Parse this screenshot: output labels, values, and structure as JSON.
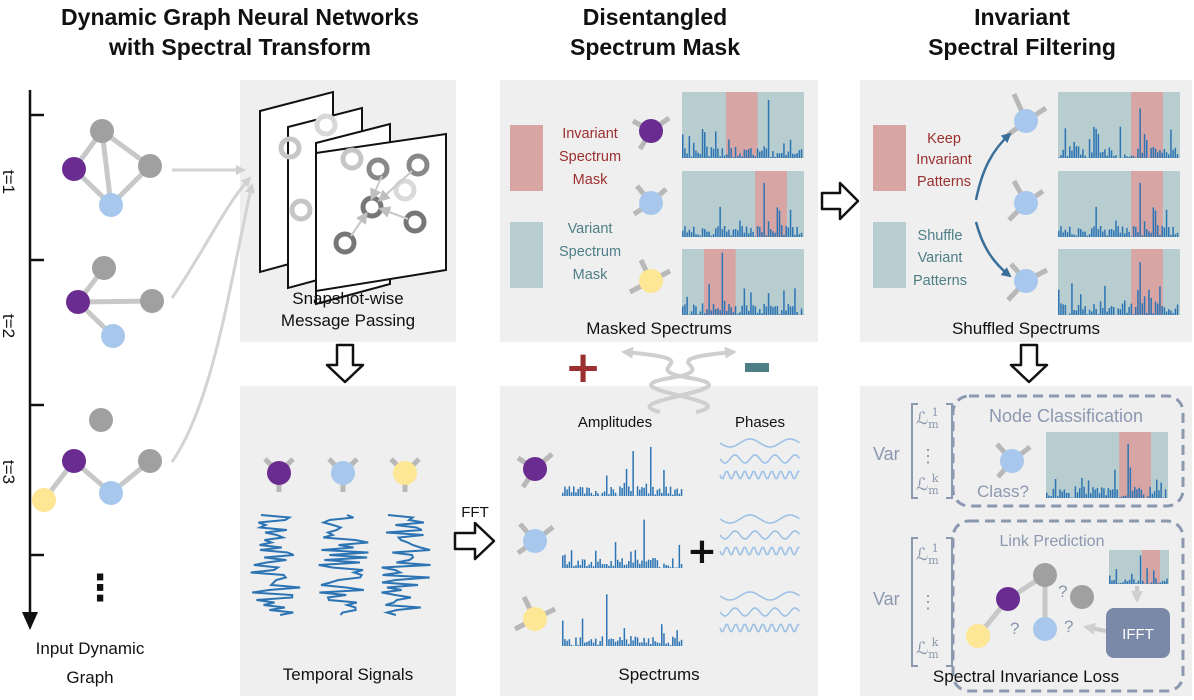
{
  "titles": {
    "left_line1": "Dynamic Graph Neural Networks",
    "left_line2": "with Spectral Transform",
    "mid_line1": "Disentangled",
    "mid_line2": "Spectrum Mask",
    "right_line1": "Invariant",
    "right_line2": "Spectral Filtering"
  },
  "timeline": {
    "t1": "t=1",
    "t2": "t=2",
    "t3": "t=3",
    "ellipsis": "⋮",
    "caption_line1": "Input Dynamic",
    "caption_line2": "Graph"
  },
  "panels": {
    "snapshot_line1": "Snapshot-wise",
    "snapshot_line2": "Message Passing",
    "temporal": "Temporal Signals",
    "masked": "Masked Spectrums",
    "spectrums": "Spectrums",
    "amplitudes": "Amplitudes",
    "phases": "Phases",
    "shuffled": "Shuffled Spectrums",
    "loss": "Spectral Invariance Loss"
  },
  "masks": {
    "inv_line1": "Invariant",
    "inv_line2": "Spectrum",
    "inv_line3": "Mask",
    "var_line1": "Variant",
    "var_line2": "Spectrum",
    "var_line3": "Mask",
    "keep_line1": "Keep",
    "keep_line2": "Invariant",
    "keep_line3": "Patterns",
    "shuffle_line1": "Shuffle",
    "shuffle_line2": "Variant",
    "shuffle_line3": "Patterns"
  },
  "ops": {
    "fft": "FFT",
    "ifft": "IFFT",
    "plus_red": "+",
    "minus_teal": "−",
    "plus": "+"
  },
  "tasks": {
    "node_classification": "Node Classification",
    "class_q": "Class?",
    "link_prediction": "Link Prediction",
    "var": "Var",
    "loss_top": "ℒ",
    "loss_top_sup": "1",
    "loss_bottom": "ℒ",
    "loss_bottom_sup": "k",
    "loss_sub": "m",
    "vdots": "⋮",
    "q": "?"
  },
  "colors": {
    "purple": "#6a2c91",
    "light_blue": "#a7c8ec",
    "yellow": "#fde694",
    "gray": "#a0a0a0",
    "bar_blue": "#2c74b3",
    "invariant_mask": "#d8a5a5",
    "variant_mask": "#b7cdcf",
    "invariant_text": "#9c2f2f",
    "variant_text": "#4e7e86",
    "loss_text": "#8c98b0"
  }
}
